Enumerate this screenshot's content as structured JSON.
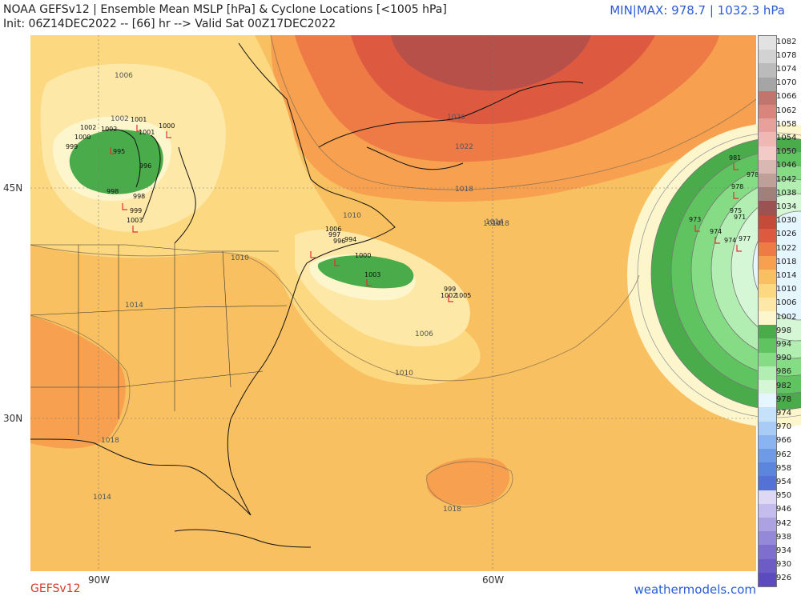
{
  "header": {
    "title": "NOAA GEFSv12 | Ensemble Mean MSLP [hPa] & Cyclone Locations [<1005 hPa]",
    "subtitle": "Init: 06Z14DEC2022 -- [66] hr --> Valid Sat 00Z17DEC2022",
    "minmax": "MIN|MAX: 978.7 | 1032.3 hPa"
  },
  "footer": {
    "model": "GEFSv12",
    "site": "weathermodels.com"
  },
  "axes": {
    "lat_labels": [
      "45N",
      "30N"
    ],
    "lon_labels": [
      "90W",
      "60W"
    ]
  },
  "colorbar": {
    "labels": [
      "1082",
      "1078",
      "1074",
      "1070",
      "1066",
      "1062",
      "1058",
      "1054",
      "1050",
      "1046",
      "1042",
      "1038",
      "1034",
      "1030",
      "1026",
      "1022",
      "1018",
      "1014",
      "1010",
      "1006",
      "1002",
      "998",
      "994",
      "990",
      "986",
      "982",
      "978",
      "974",
      "970",
      "966",
      "962",
      "958",
      "954",
      "950",
      "946",
      "942",
      "938",
      "934",
      "930",
      "926"
    ],
    "colors": [
      "#e2e2e2",
      "#d2d2d2",
      "#bbbbbb",
      "#a5a5a5",
      "#c0766f",
      "#d9857d",
      "#e8a09a",
      "#f0b8b3",
      "#f3cac6",
      "#d8b8b0",
      "#bfa098",
      "#a08078",
      "#9c5250",
      "#c44a3a",
      "#dd5a40",
      "#ee7a45",
      "#f6a050",
      "#f8c060",
      "#fcd880",
      "#fde8a8",
      "#fdf6cc",
      "#4aab4a",
      "#5fc35f",
      "#85dc85",
      "#b2eeb2",
      "#d6f7d6",
      "#e6f6ff",
      "#c6e2fb",
      "#a8ccf5",
      "#8ab4ef",
      "#6f9be6",
      "#5c86dd",
      "#5472d6",
      "#ded8f4",
      "#c4bcec",
      "#aca2e2",
      "#9488d8",
      "#7e6fce",
      "#6d5cc6",
      "#5c4abf"
    ]
  },
  "isobar_labels": [
    "1026",
    "1022",
    "1018",
    "1014",
    "1010",
    "1006",
    "1002",
    "1010",
    "1014",
    "1018",
    "1018",
    "1014",
    "1006",
    "1010",
    "1014",
    "1018"
  ],
  "cyclone_labels": {
    "great_lakes": [
      "1002",
      "1001",
      "1000",
      "1002",
      "1001",
      "999",
      "1000",
      "998",
      "995",
      "996",
      "998",
      "999",
      "1003"
    ],
    "mid_atlantic": [
      "1006",
      "997",
      "996",
      "994",
      "1000",
      "1003"
    ],
    "offshore": [
      "999",
      "1002",
      "1005"
    ],
    "atlantic": [
      "981",
      "978",
      "978",
      "973",
      "975",
      "971",
      "974",
      "974",
      "977"
    ]
  }
}
